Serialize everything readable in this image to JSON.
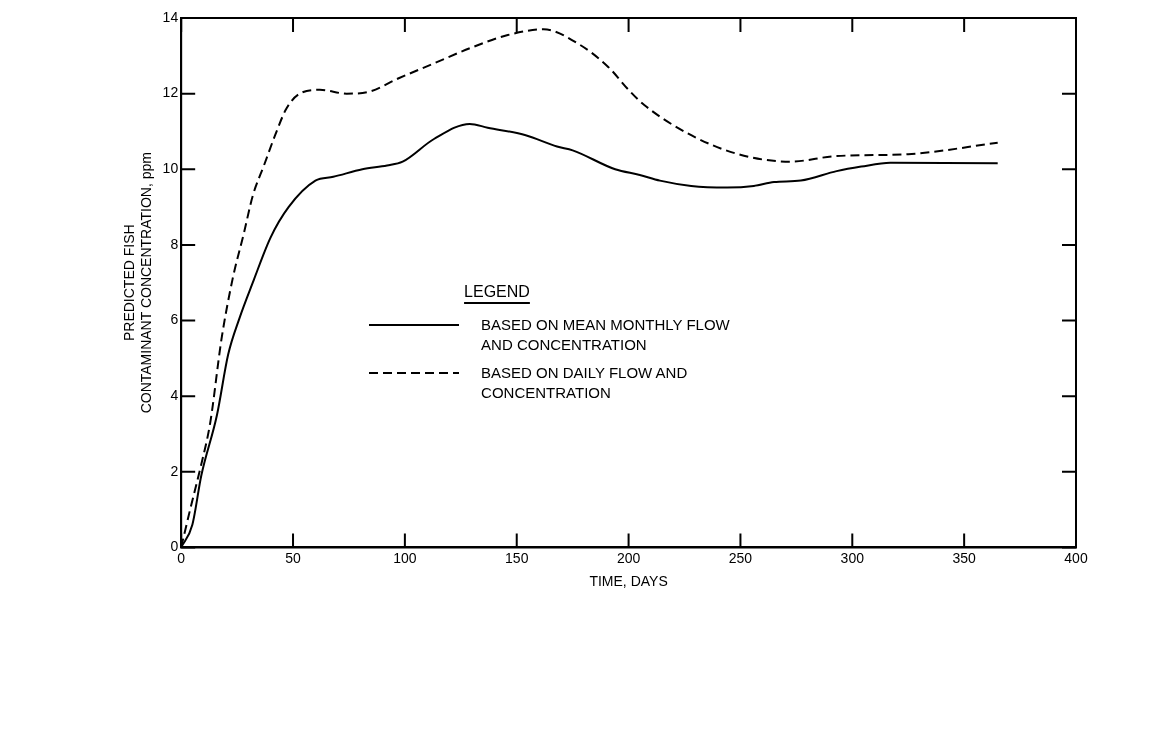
{
  "chart_data": {
    "type": "line",
    "xlabel": "TIME, DAYS",
    "ylabel": "PREDICTED FISH\nCONTAMINANT CONCENTRATION, ppm",
    "legend_title": "LEGEND",
    "legend": "center",
    "xlim": [
      0,
      400
    ],
    "xticks": [
      0,
      50,
      100,
      150,
      200,
      250,
      300,
      350,
      400
    ],
    "ylim": [
      0,
      14
    ],
    "yticks": [
      0,
      2,
      4,
      6,
      8,
      10,
      12,
      14
    ],
    "grid": false,
    "marker": "none",
    "series": [
      {
        "name": "BASED ON MEAN MONTHLY FLOW AND CONCENTRATION",
        "color": "#000000",
        "line_style": "solid",
        "x": [
          0,
          5,
          9,
          16,
          21,
          26,
          32,
          40,
          48,
          60,
          68,
          81,
          92,
          99,
          113,
          129,
          137,
          154,
          168,
          175,
          194,
          205,
          214,
          228,
          244,
          256,
          265,
          277,
          293,
          304,
          317,
          365
        ],
        "values": [
          0,
          0.6,
          1.9,
          3.5,
          5.1,
          6.05,
          7.0,
          8.2,
          9.0,
          9.7,
          9.8,
          10.0,
          10.1,
          10.2,
          10.8,
          11.2,
          11.1,
          10.9,
          10.6,
          10.5,
          10.0,
          9.85,
          9.7,
          9.56,
          9.52,
          9.56,
          9.66,
          9.7,
          9.95,
          10.07,
          10.17,
          10.16
        ]
      },
      {
        "name": "BASED ON DAILY FLOW AND CONCENTRATION",
        "color": "#000000",
        "line_style": "dashed",
        "x": [
          0,
          4,
          9,
          13,
          18,
          23,
          28,
          32,
          37,
          42,
          47,
          53,
          62,
          74,
          84,
          97,
          113,
          129,
          146,
          162,
          178,
          191,
          200,
          207,
          228,
          249,
          272,
          293,
          325,
          365
        ],
        "values": [
          0,
          1.0,
          2.2,
          3.3,
          5.5,
          7.1,
          8.3,
          9.3,
          10.1,
          10.9,
          11.6,
          12.0,
          12.1,
          12.0,
          12.05,
          12.4,
          12.8,
          13.2,
          13.55,
          13.7,
          13.3,
          12.7,
          12.1,
          11.7,
          10.9,
          10.4,
          10.2,
          10.35,
          10.4,
          10.7
        ]
      }
    ]
  }
}
